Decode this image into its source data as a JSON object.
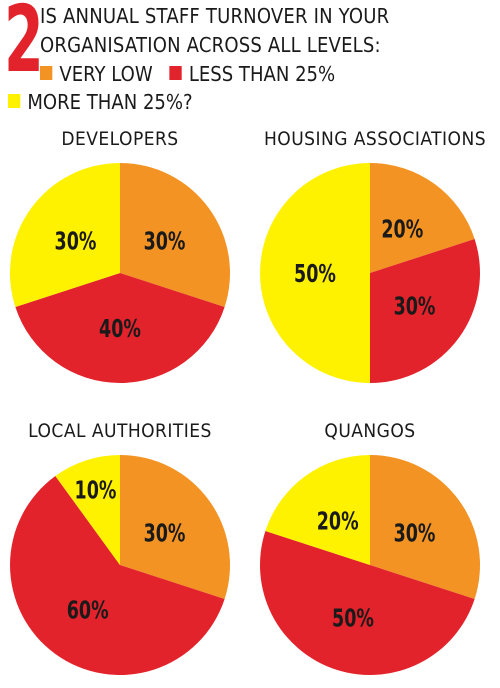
{
  "question": {
    "number": "2",
    "line1": "IS ANNUAL STAFF TURNOVER IN YOUR",
    "line2": "ORGANISATION ACROSS ALL LEVELS:"
  },
  "legend": [
    {
      "label": "VERY LOW",
      "color": "#f39323"
    },
    {
      "label": "LESS THAN 25%",
      "color": "#e3232b"
    },
    {
      "label": "MORE THAN 25%?",
      "color": "#fff200"
    }
  ],
  "chart_data": [
    {
      "type": "pie",
      "title": "DEVELOPERS",
      "slices": [
        {
          "label": "VERY LOW",
          "value": 30,
          "text": "30%"
        },
        {
          "label": "LESS THAN 25%",
          "value": 40,
          "text": "40%"
        },
        {
          "label": "MORE THAN 25%?",
          "value": 30,
          "text": "30%"
        }
      ]
    },
    {
      "type": "pie",
      "title": "HOUSING ASSOCIATIONS",
      "slices": [
        {
          "label": "VERY LOW",
          "value": 20,
          "text": "20%"
        },
        {
          "label": "LESS THAN 25%",
          "value": 30,
          "text": "30%"
        },
        {
          "label": "MORE THAN 25%?",
          "value": 50,
          "text": "50%"
        }
      ]
    },
    {
      "type": "pie",
      "title": "LOCAL AUTHORITIES",
      "slices": [
        {
          "label": "VERY LOW",
          "value": 30,
          "text": "30%"
        },
        {
          "label": "LESS THAN 25%",
          "value": 60,
          "text": "60%"
        },
        {
          "label": "MORE THAN 25%?",
          "value": 10,
          "text": "10%"
        }
      ]
    },
    {
      "type": "pie",
      "title": "QUANGOS",
      "slices": [
        {
          "label": "VERY LOW",
          "value": 30,
          "text": "30%"
        },
        {
          "label": "LESS THAN 25%",
          "value": 50,
          "text": "50%"
        },
        {
          "label": "MORE THAN 25%?",
          "value": 20,
          "text": "20%"
        }
      ]
    }
  ]
}
